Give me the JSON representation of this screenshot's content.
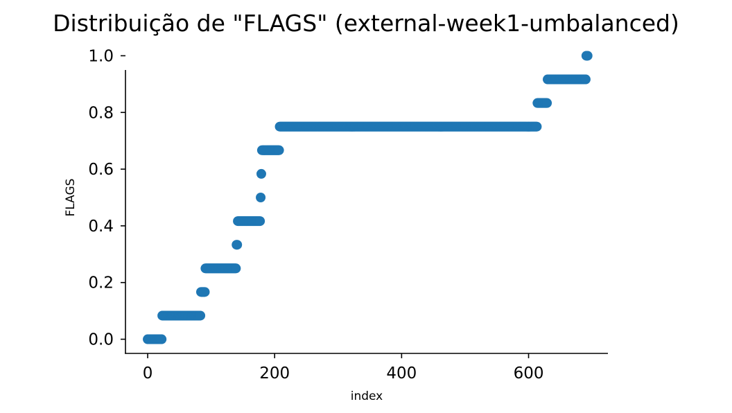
{
  "chart_data": {
    "type": "scatter",
    "title": "Distribuição de \"FLAGS\" (external-week1-umbalanced)",
    "xlabel": "index",
    "ylabel": "FLAGS",
    "xlim": [
      -35,
      725
    ],
    "ylim": [
      -0.05,
      1.05
    ],
    "xticks": [
      0,
      200,
      400,
      600
    ],
    "xtick_labels": [
      "0",
      "200",
      "400",
      "600"
    ],
    "yticks": [
      0.0,
      0.2,
      0.4,
      0.6,
      0.8,
      1.0
    ],
    "ytick_labels": [
      "0.0",
      "0.2",
      "0.4",
      "0.6",
      "0.8",
      "1.0"
    ],
    "grid": false,
    "spines": [
      "left",
      "bottom"
    ],
    "marker_color": "#1f77b4",
    "segments": [
      {
        "y": 0.0,
        "x_start": 0,
        "x_end": 22
      },
      {
        "y": 0.0833,
        "x_start": 23,
        "x_end": 83
      },
      {
        "y": 0.1667,
        "x_start": 84,
        "x_end": 90
      },
      {
        "y": 0.25,
        "x_start": 91,
        "x_end": 139
      },
      {
        "y": 0.3333,
        "x_start": 140,
        "x_end": 141
      },
      {
        "y": 0.4167,
        "x_start": 142,
        "x_end": 177
      },
      {
        "y": 0.5,
        "x_start": 178,
        "x_end": 178
      },
      {
        "y": 0.5833,
        "x_start": 179,
        "x_end": 179
      },
      {
        "y": 0.6667,
        "x_start": 180,
        "x_end": 207
      },
      {
        "y": 0.75,
        "x_start": 208,
        "x_end": 613
      },
      {
        "y": 0.8333,
        "x_start": 614,
        "x_end": 629
      },
      {
        "y": 0.9167,
        "x_start": 630,
        "x_end": 690
      },
      {
        "y": 1.0,
        "x_start": 691,
        "x_end": 693
      }
    ]
  }
}
